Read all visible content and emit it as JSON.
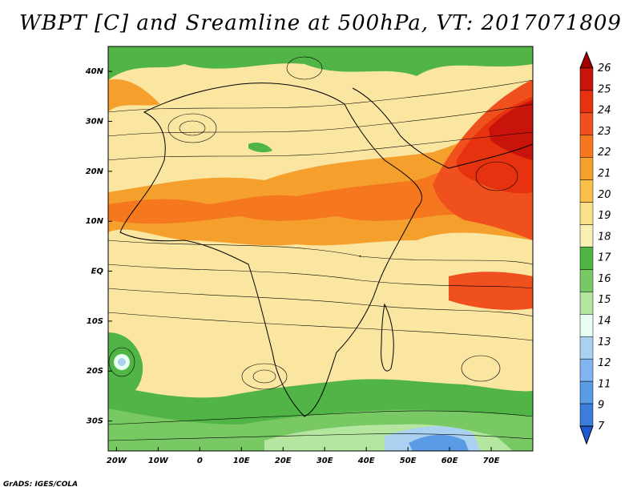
{
  "title": "WBPT [C] and Sreamline at 500hPa, VT: 2017071809",
  "footer": "GrADS: IGES/COLA",
  "map": {
    "lat_labels": [
      "40N",
      "30N",
      "20N",
      "10N",
      "EQ",
      "10S",
      "20S",
      "30S"
    ],
    "lat_values": [
      40,
      30,
      20,
      10,
      0,
      -10,
      -20,
      -30
    ],
    "lon_labels": [
      "20W",
      "10W",
      "0",
      "10E",
      "20E",
      "30E",
      "40E",
      "50E",
      "60E",
      "70E"
    ],
    "lon_values": [
      -20,
      -10,
      0,
      10,
      20,
      30,
      40,
      50,
      60,
      70
    ],
    "lat_range": [
      -36,
      45
    ],
    "lon_range": [
      -22,
      80
    ]
  },
  "colorbar": {
    "labels": [
      "26",
      "25",
      "24",
      "23",
      "22",
      "21",
      "20",
      "19",
      "18",
      "17",
      "16",
      "15",
      "14",
      "13",
      "12",
      "11",
      "9",
      "7"
    ],
    "colors": [
      "#a50000",
      "#c8140a",
      "#e6320f",
      "#f0501e",
      "#f5781e",
      "#f5a02d",
      "#f8c048",
      "#fae08a",
      "#faf0b4",
      "#50b446",
      "#78c864",
      "#b4e6a0",
      "#e6fff0",
      "#aad2f0",
      "#82b4f0",
      "#5a9be6",
      "#3c7ddc",
      "#1e5ad2"
    ]
  }
}
